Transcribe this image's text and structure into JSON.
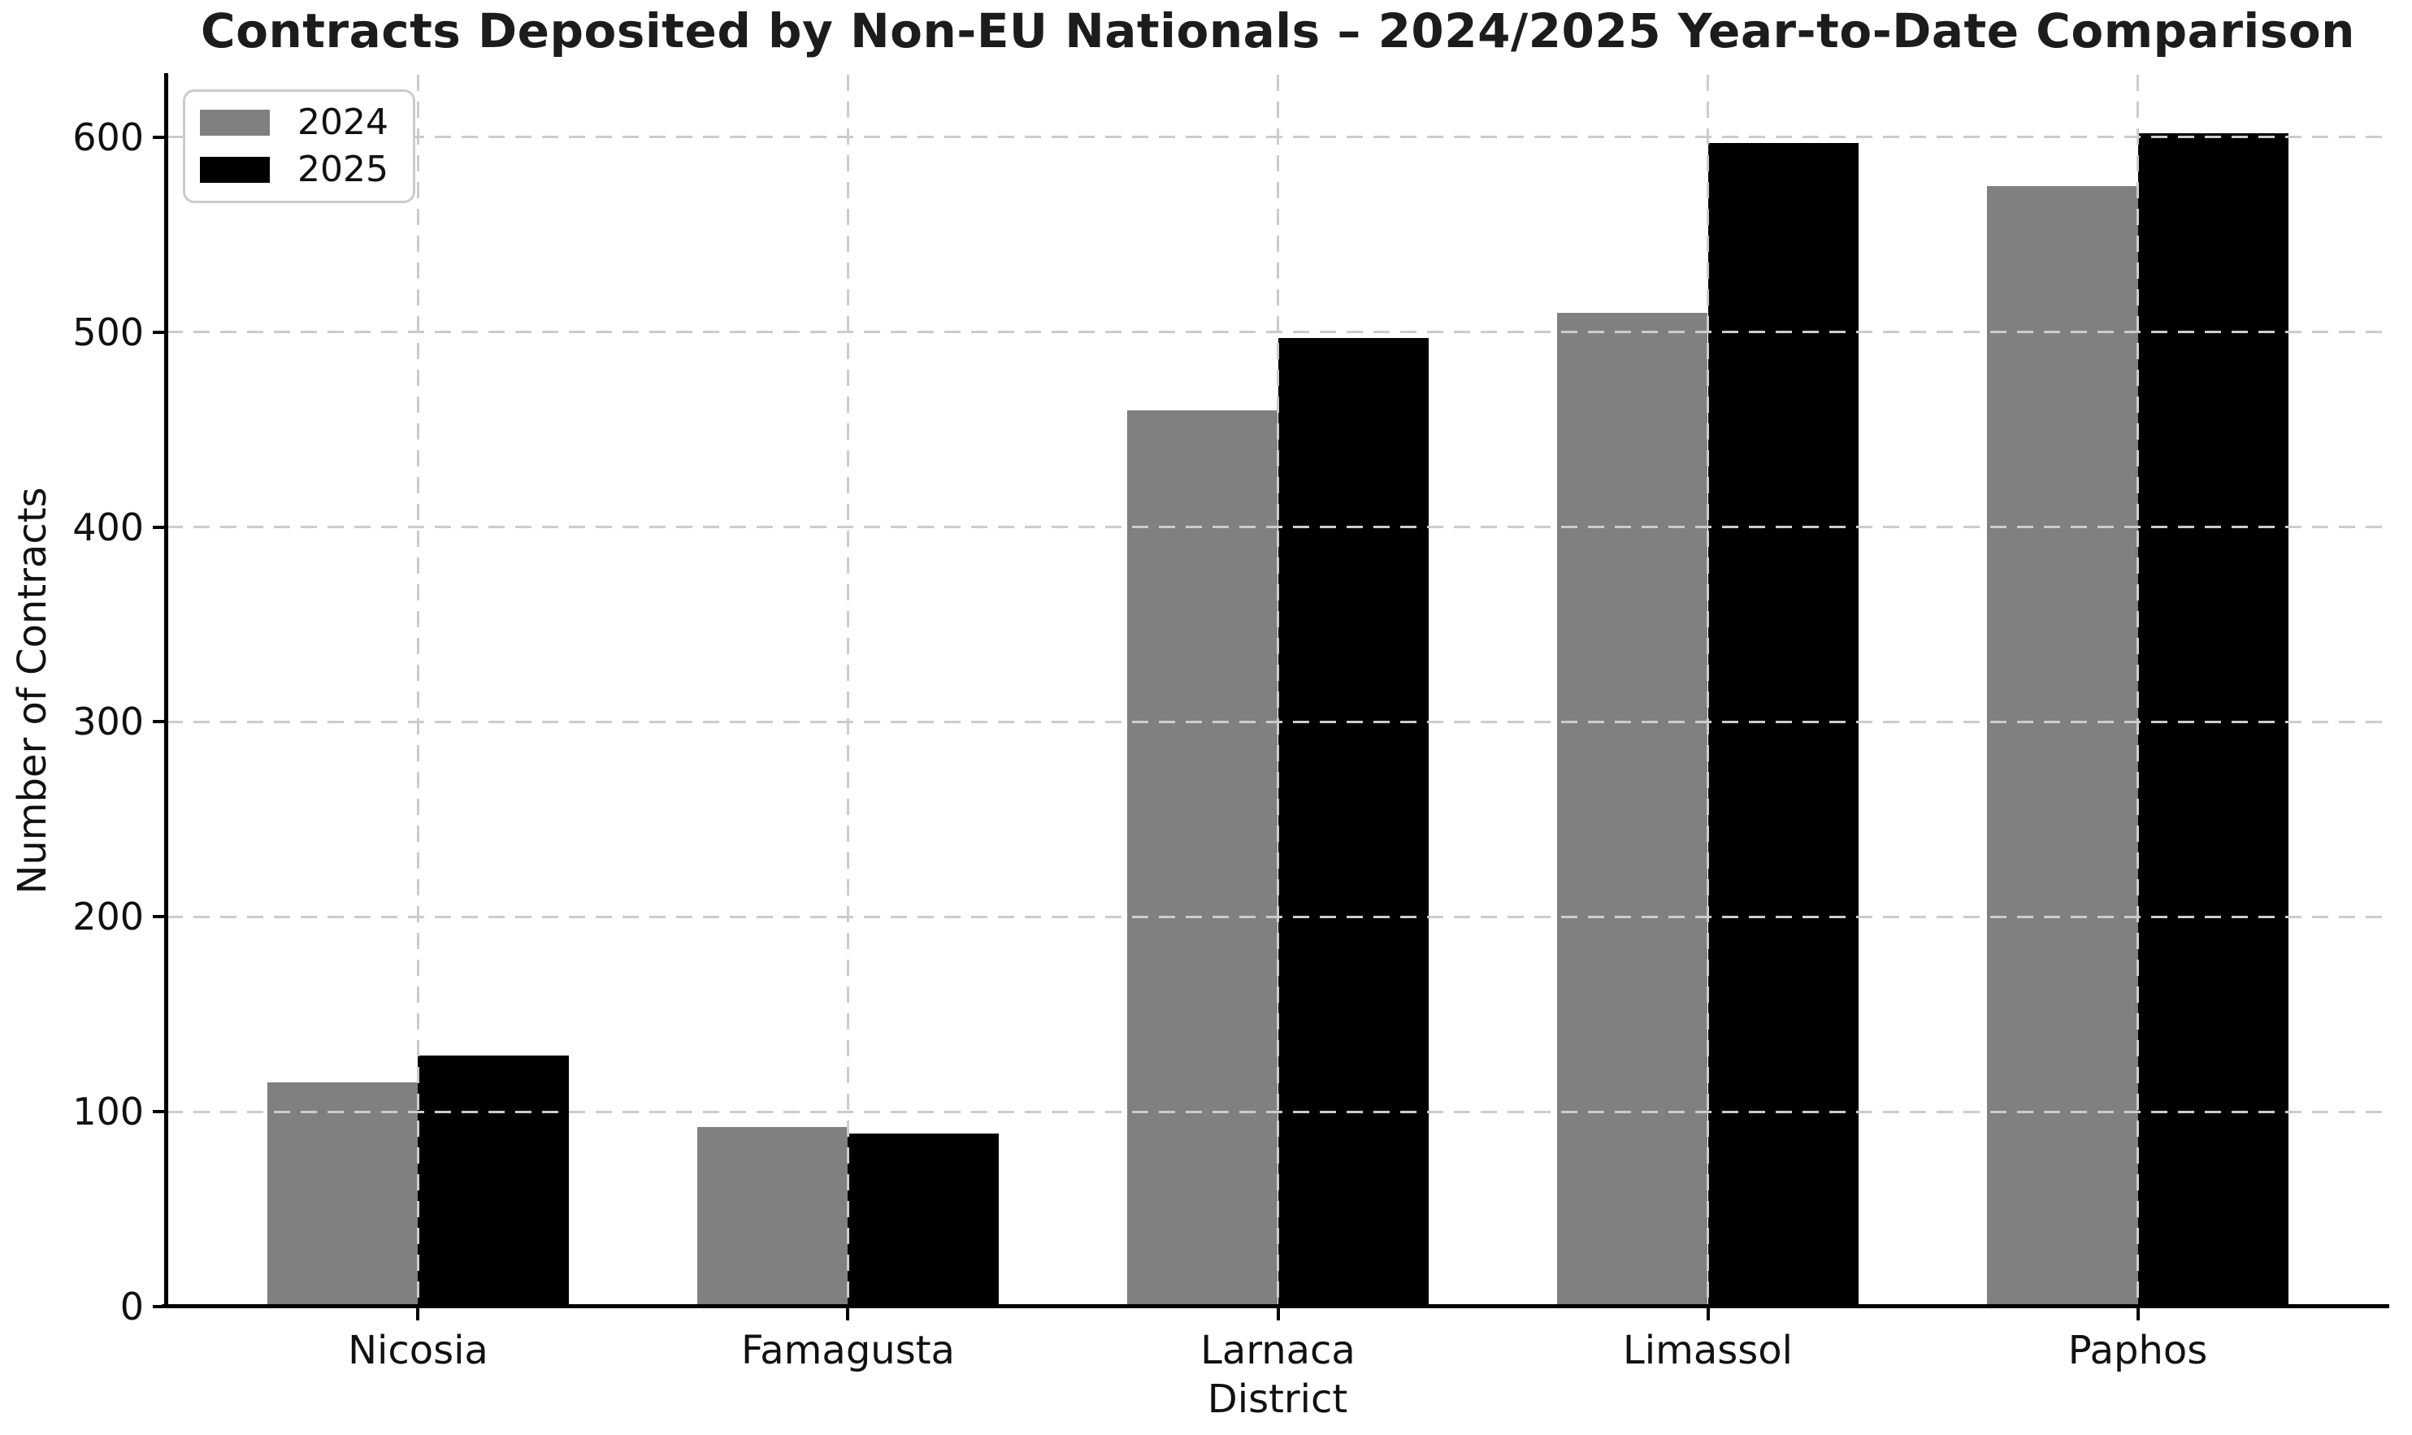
{
  "chart_data": {
    "type": "bar",
    "title": "Contracts Deposited by Non-EU Nationals – 2024/2025 Year-to-Date Comparison",
    "xlabel": "District",
    "ylabel": "Number of Contracts",
    "categories": [
      "Nicosia",
      "Famagusta",
      "Larnaca",
      "Limassol",
      "Paphos"
    ],
    "series": [
      {
        "name": "2024",
        "color": "#808080",
        "values": [
          115,
          92,
          460,
          510,
          575
        ]
      },
      {
        "name": "2025",
        "color": "#000000",
        "values": [
          129,
          89,
          497,
          597,
          602
        ]
      }
    ],
    "ylim": [
      0,
      632
    ],
    "yticks": [
      0,
      100,
      200,
      300,
      400,
      500,
      600
    ],
    "grid": "dashed-both-axes",
    "grid_color": "#cccccc",
    "axis_color": "#000000",
    "legend_position": "upper-left",
    "bar_width_fraction": 0.35
  }
}
